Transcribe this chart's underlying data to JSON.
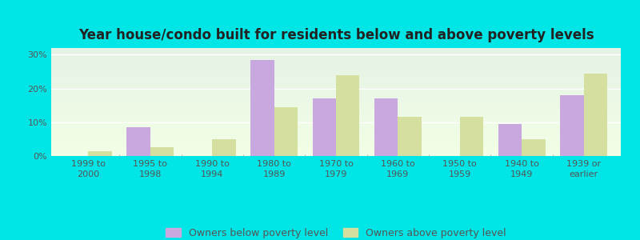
{
  "title": "Year house/condo built for residents below and above poverty levels",
  "categories": [
    "1999 to\n2000",
    "1995 to\n1998",
    "1990 to\n1994",
    "1980 to\n1989",
    "1970 to\n1979",
    "1960 to\n1969",
    "1950 to\n1959",
    "1940 to\n1949",
    "1939 or\nearlier"
  ],
  "below_poverty": [
    0.0,
    8.5,
    0.0,
    28.5,
    17.0,
    17.0,
    0.0,
    9.5,
    18.0
  ],
  "above_poverty": [
    1.5,
    2.5,
    5.0,
    14.5,
    24.0,
    11.5,
    11.5,
    5.0,
    24.5
  ],
  "below_color": "#c9a8e0",
  "above_color": "#d4dfa0",
  "ylim": [
    0,
    32
  ],
  "yticks": [
    0,
    10,
    20,
    30
  ],
  "ytick_labels": [
    "0%",
    "10%",
    "20%",
    "30%"
  ],
  "border_color": "#00e5e5",
  "legend_below": "Owners below poverty level",
  "legend_above": "Owners above poverty level",
  "title_fontsize": 12,
  "tick_fontsize": 8
}
